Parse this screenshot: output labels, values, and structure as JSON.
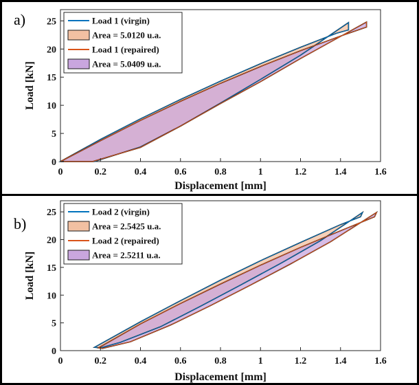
{
  "chart_data": [
    {
      "type": "line",
      "panel_label": "a)",
      "xlabel": "Displacement [mm]",
      "ylabel": "Load [kN]",
      "xlim": [
        0,
        1.6
      ],
      "ylim": [
        0,
        27
      ],
      "xticks": [
        "0",
        "0.2",
        "0.4",
        "0.6",
        "0.8",
        "1",
        "1.2",
        "1.4",
        "1.6"
      ],
      "yticks": [
        "0",
        "5",
        "10",
        "15",
        "20",
        "25"
      ],
      "grid": false,
      "legend_position": "top-left",
      "series": [
        {
          "name": "Load 1 (virgin)",
          "color": "#0072BD",
          "x": [
            0.0,
            0.2,
            0.4,
            0.6,
            0.8,
            1.0,
            1.2,
            1.38,
            1.44,
            1.44,
            1.2,
            1.0,
            0.8,
            0.6,
            0.4,
            0.17
          ],
          "y": [
            0.0,
            3.95,
            7.6,
            11.05,
            14.3,
            17.4,
            20.3,
            22.8,
            23.4,
            24.7,
            18.9,
            14.6,
            10.4,
            6.3,
            2.6,
            0.0
          ]
        },
        {
          "name": "Area = 5.0120 u.a.",
          "fill_color": "#F2C0A2",
          "area": 5.012
        },
        {
          "name": "Load 1 (repaired)",
          "color": "#D95319",
          "x": [
            0.0,
            0.2,
            0.4,
            0.6,
            0.8,
            1.0,
            1.2,
            1.4,
            1.53,
            1.53,
            1.2,
            1.0,
            0.8,
            0.6,
            0.4,
            0.16
          ],
          "y": [
            0.0,
            3.7,
            7.3,
            10.7,
            13.9,
            16.9,
            19.7,
            22.3,
            23.9,
            24.8,
            18.3,
            14.2,
            10.3,
            6.3,
            2.5,
            0.0
          ]
        },
        {
          "name": "Area = 5.0409 u.a.",
          "fill_color": "#C9A6DE",
          "area": 5.0409
        }
      ]
    },
    {
      "type": "line",
      "panel_label": "b)",
      "xlabel": "Displacement [mm]",
      "ylabel": "Load [kN]",
      "xlim": [
        0,
        1.6
      ],
      "ylim": [
        0,
        27
      ],
      "xticks": [
        "0",
        "0.2",
        "0.4",
        "0.6",
        "0.8",
        "1",
        "1.2",
        "1.4",
        "1.6"
      ],
      "yticks": [
        "0",
        "5",
        "10",
        "15",
        "20",
        "25"
      ],
      "grid": false,
      "legend_position": "top-left",
      "series": [
        {
          "name": "Load 2 (virgin)",
          "color": "#0072BD",
          "x": [
            0.17,
            0.4,
            0.6,
            0.8,
            1.0,
            1.2,
            1.4,
            1.5,
            1.51,
            1.3,
            1.1,
            0.9,
            0.7,
            0.5,
            0.3,
            0.2
          ],
          "y": [
            0.6,
            5.2,
            9.0,
            12.7,
            16.2,
            19.5,
            22.7,
            24.1,
            24.9,
            19.8,
            15.7,
            11.8,
            8.0,
            4.3,
            1.5,
            0.5
          ]
        },
        {
          "name": "Area = 2.5425 u.a.",
          "fill_color": "#F2C0A2",
          "area": 2.5425
        },
        {
          "name": "Load 2 (repaired)",
          "color": "#D95319",
          "x": [
            0.19,
            0.4,
            0.6,
            0.8,
            1.0,
            1.2,
            1.4,
            1.57,
            1.58,
            1.35,
            1.15,
            0.95,
            0.75,
            0.55,
            0.35,
            0.21
          ],
          "y": [
            0.5,
            4.8,
            8.5,
            12.0,
            15.4,
            18.6,
            21.6,
            24.1,
            24.9,
            19.6,
            15.6,
            11.8,
            8.1,
            4.6,
            1.6,
            0.4
          ]
        },
        {
          "name": "Area = 2.5211 u.a.",
          "fill_color": "#C9A6DE",
          "area": 2.5211
        }
      ]
    }
  ]
}
